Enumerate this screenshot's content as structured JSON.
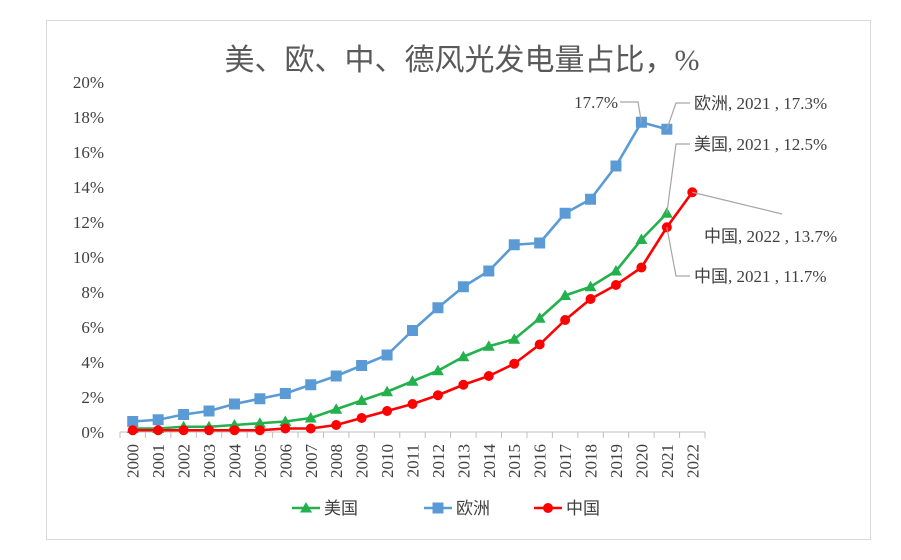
{
  "chart_data": {
    "type": "line",
    "title": "美、欧、中、德风光发电量占比，%",
    "xlabel": "",
    "ylabel": "",
    "ylim": [
      0,
      20
    ],
    "yticks": [
      "0%",
      "2%",
      "4%",
      "6%",
      "8%",
      "10%",
      "12%",
      "14%",
      "16%",
      "18%",
      "20%"
    ],
    "categories": [
      "2000",
      "2001",
      "2002",
      "2003",
      "2004",
      "2005",
      "2006",
      "2007",
      "2008",
      "2009",
      "2010",
      "2011",
      "2012",
      "2013",
      "2014",
      "2015",
      "2016",
      "2017",
      "2018",
      "2019",
      "2020",
      "2021",
      "2022"
    ],
    "series": [
      {
        "name": "美国",
        "color": "#22b14c",
        "marker": "triangle",
        "values": [
          0.2,
          0.2,
          0.3,
          0.3,
          0.4,
          0.5,
          0.6,
          0.8,
          1.3,
          1.8,
          2.3,
          2.9,
          3.5,
          4.3,
          4.9,
          5.3,
          6.5,
          7.8,
          8.3,
          9.2,
          11.0,
          12.5,
          null
        ]
      },
      {
        "name": "欧洲",
        "color": "#5b9bd5",
        "marker": "square",
        "values": [
          0.6,
          0.7,
          1.0,
          1.2,
          1.6,
          1.9,
          2.2,
          2.7,
          3.2,
          3.8,
          4.4,
          5.8,
          7.1,
          8.3,
          9.2,
          10.7,
          10.8,
          12.5,
          13.3,
          15.2,
          17.7,
          17.3,
          null
        ]
      },
      {
        "name": "中国",
        "color": "#ff0000",
        "marker": "circle",
        "values": [
          0.1,
          0.1,
          0.1,
          0.1,
          0.1,
          0.1,
          0.2,
          0.2,
          0.4,
          0.8,
          1.2,
          1.6,
          2.1,
          2.7,
          3.2,
          3.9,
          5.0,
          6.4,
          7.6,
          8.4,
          9.4,
          11.7,
          13.7
        ]
      }
    ],
    "annotations": [
      {
        "id": "eu2020",
        "text": "17.7%",
        "series": 1,
        "index": 20
      },
      {
        "id": "eu2021",
        "text": "欧洲, 2021 , 17.3%",
        "series": 1,
        "index": 21
      },
      {
        "id": "us2021",
        "text": "美国, 2021 , 12.5%",
        "series": 0,
        "index": 21
      },
      {
        "id": "cn2022",
        "text": "中国, 2022 , 13.7%",
        "series": 2,
        "index": 22
      },
      {
        "id": "cn2021",
        "text": "中国, 2021 , 11.7%",
        "series": 2,
        "index": 21
      }
    ],
    "legend_position": "bottom"
  }
}
